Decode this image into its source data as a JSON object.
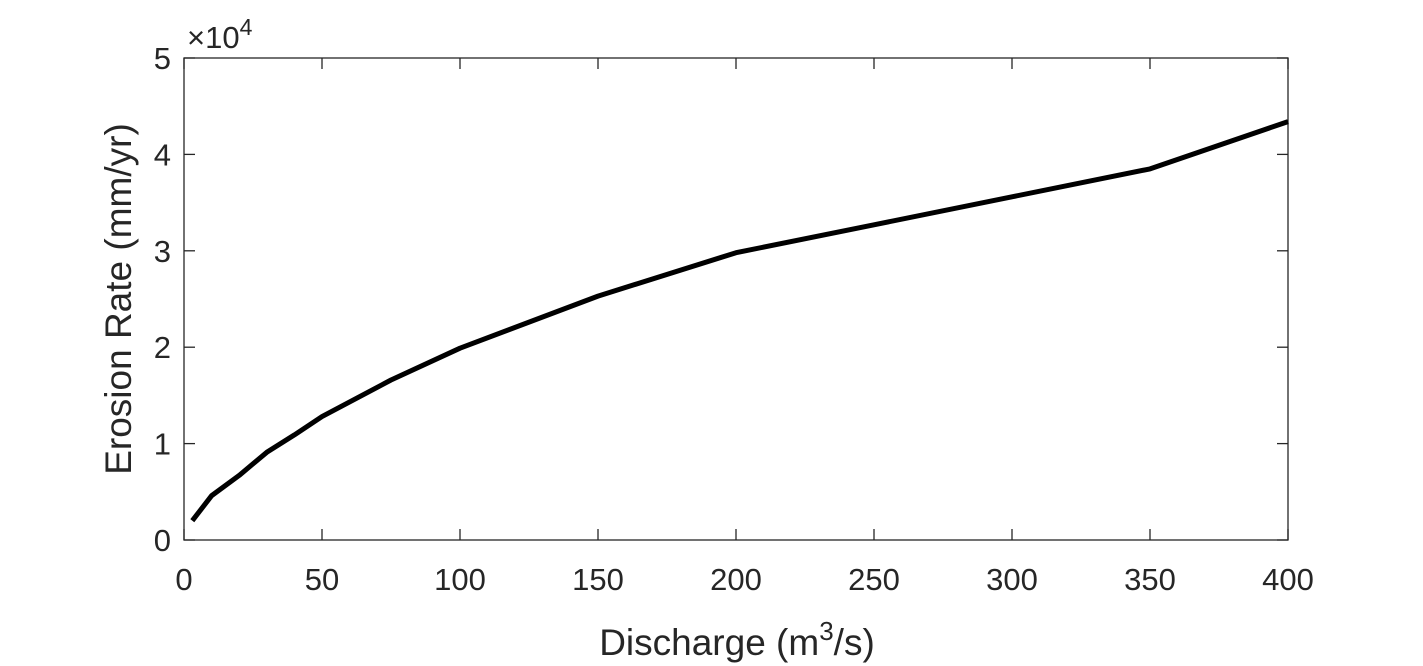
{
  "chart_data": {
    "type": "line",
    "title": "",
    "xlabel_parts": {
      "pre": "Discharge (m",
      "sup": "3",
      "post": "/s)"
    },
    "ylabel": "Erosion Rate (mm/yr)",
    "y_exponent": {
      "base": "×10",
      "power": "4"
    },
    "xlim": [
      0,
      400
    ],
    "ylim": [
      0,
      50000
    ],
    "xticks": [
      0,
      50,
      100,
      150,
      200,
      250,
      300,
      350,
      400
    ],
    "yticks": [
      0,
      10000,
      20000,
      30000,
      40000,
      50000
    ],
    "xtick_labels": [
      "0",
      "50",
      "100",
      "150",
      "200",
      "250",
      "300",
      "350",
      "400"
    ],
    "ytick_labels": [
      "0",
      "1",
      "2",
      "3",
      "4",
      "5"
    ],
    "grid": false,
    "series": [
      {
        "color": "#000000",
        "x": [
          3,
          10,
          20,
          30,
          40,
          50,
          75,
          100,
          150,
          200,
          250,
          300,
          350,
          400
        ],
        "y": [
          2000,
          4600,
          6700,
          9100,
          10900,
          12800,
          16600,
          19900,
          25300,
          29800,
          32700,
          35600,
          38500,
          43400
        ]
      }
    ]
  }
}
